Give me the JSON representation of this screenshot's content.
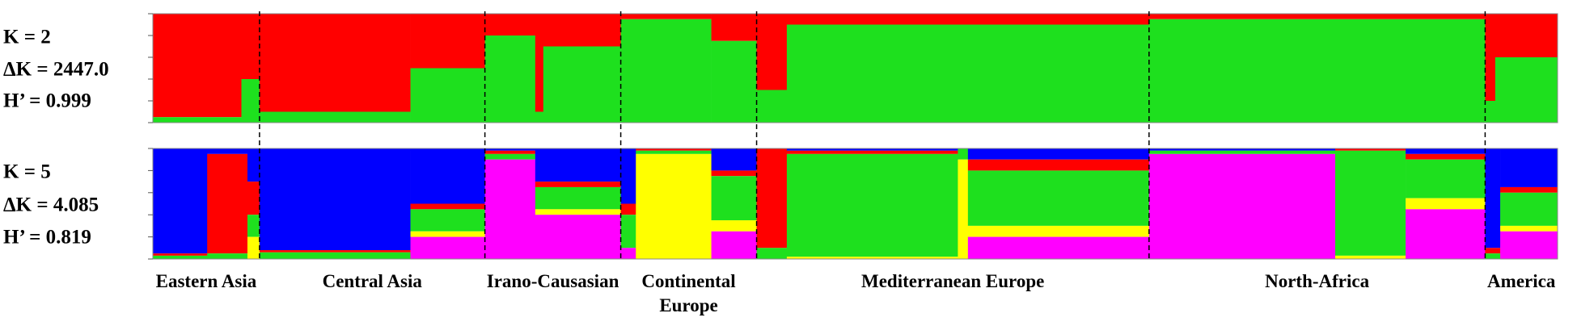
{
  "groups": [
    {
      "label": "Eastern Asia",
      "n": 106
    },
    {
      "label": "Central Asia",
      "n": 224
    },
    {
      "label": "Irano-Causasian",
      "n": 135
    },
    {
      "label": "Continental Europe",
      "n": 135
    },
    {
      "label": "Mediterranean Europe",
      "n": 390
    },
    {
      "label": "North-Africa",
      "n": 334
    },
    {
      "label": "America",
      "n": 72
    }
  ],
  "chart_data": [
    {
      "type": "structure",
      "labels": [
        "K = 2",
        "ΔK = 2447.0",
        "H’ = 0.999"
      ],
      "colors": [
        "#ff0000",
        "#1ee01e"
      ],
      "ylim": [
        0,
        1
      ],
      "yticks": [
        0,
        0.2,
        0.4,
        0.6,
        0.8,
        1
      ],
      "blocks": [
        {
          "n": 88,
          "values": [
            0.95,
            0.05
          ]
        },
        {
          "n": 18,
          "values": [
            0.6,
            0.4
          ]
        },
        {
          "n": 150,
          "values": [
            0.9,
            0.1
          ]
        },
        {
          "n": 74,
          "values": [
            0.5,
            0.5
          ]
        },
        {
          "n": 50,
          "values": [
            0.2,
            0.8
          ]
        },
        {
          "n": 8,
          "values": [
            0.9,
            0.1
          ]
        },
        {
          "n": 77,
          "values": [
            0.3,
            0.7
          ]
        },
        {
          "n": 90,
          "values": [
            0.05,
            0.95
          ]
        },
        {
          "n": 45,
          "values": [
            0.25,
            0.75
          ]
        },
        {
          "n": 30,
          "values": [
            0.7,
            0.3
          ]
        },
        {
          "n": 360,
          "values": [
            0.1,
            0.9
          ]
        },
        {
          "n": 334,
          "values": [
            0.05,
            0.95
          ]
        },
        {
          "n": 10,
          "values": [
            0.8,
            0.2
          ]
        },
        {
          "n": 62,
          "values": [
            0.4,
            0.6
          ]
        }
      ]
    },
    {
      "type": "structure",
      "labels": [
        "K = 5",
        "ΔK = 4.085",
        "H’ = 0.819"
      ],
      "colors": [
        "#0000ff",
        "#ff0000",
        "#1ee01e",
        "#ffff00",
        "#ff00ff"
      ],
      "ylim": [
        0,
        1
      ],
      "yticks": [
        0,
        0.2,
        0.4,
        0.6,
        0.8,
        1
      ],
      "blocks": [
        {
          "n": 54,
          "values": [
            0.95,
            0.02,
            0.03,
            0,
            0
          ]
        },
        {
          "n": 40,
          "values": [
            0.05,
            0.9,
            0.05,
            0,
            0
          ]
        },
        {
          "n": 12,
          "values": [
            0.3,
            0.3,
            0.2,
            0.2,
            0
          ]
        },
        {
          "n": 150,
          "values": [
            0.92,
            0.02,
            0.06,
            0,
            0
          ]
        },
        {
          "n": 74,
          "values": [
            0.5,
            0.05,
            0.2,
            0.05,
            0.2
          ]
        },
        {
          "n": 50,
          "values": [
            0.02,
            0.03,
            0.05,
            0,
            0.9
          ]
        },
        {
          "n": 85,
          "values": [
            0.3,
            0.05,
            0.2,
            0.05,
            0.4
          ]
        },
        {
          "n": 15,
          "values": [
            0.5,
            0.1,
            0.3,
            0,
            0.1
          ]
        },
        {
          "n": 75,
          "values": [
            0,
            0.02,
            0.03,
            0.95,
            0
          ]
        },
        {
          "n": 45,
          "values": [
            0.2,
            0.05,
            0.4,
            0.1,
            0.25
          ]
        },
        {
          "n": 30,
          "values": [
            0,
            0.9,
            0.1,
            0,
            0
          ]
        },
        {
          "n": 170,
          "values": [
            0.02,
            0.03,
            0.93,
            0.02,
            0
          ]
        },
        {
          "n": 10,
          "values": [
            0,
            0,
            0.1,
            0.9,
            0
          ]
        },
        {
          "n": 180,
          "values": [
            0.1,
            0.1,
            0.5,
            0.1,
            0.2
          ]
        },
        {
          "n": 185,
          "values": [
            0.02,
            0,
            0.03,
            0,
            0.95
          ]
        },
        {
          "n": 70,
          "values": [
            0,
            0.02,
            0.95,
            0.03,
            0
          ]
        },
        {
          "n": 79,
          "values": [
            0.05,
            0.05,
            0.35,
            0.1,
            0.45
          ]
        },
        {
          "n": 15,
          "values": [
            0.9,
            0.05,
            0.05,
            0,
            0
          ]
        },
        {
          "n": 57,
          "values": [
            0.35,
            0.05,
            0.3,
            0.05,
            0.25
          ]
        }
      ]
    }
  ]
}
